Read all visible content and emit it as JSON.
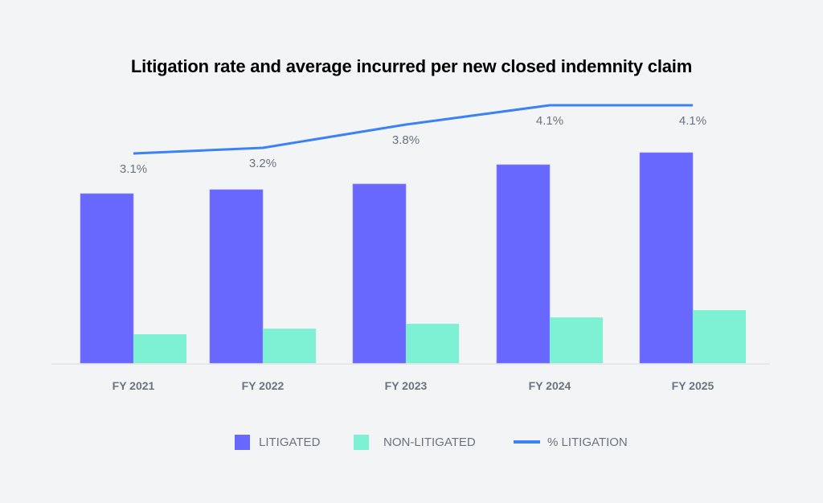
{
  "chart_data": {
    "type": "bar",
    "title": "Litigation rate and average incurred per new closed indemnity claim",
    "categories": [
      "FY 2021",
      "FY 2022",
      "FY 2023",
      "FY 2024",
      "FY 2025"
    ],
    "series": [
      {
        "name": "LITIGATED",
        "kind": "bar",
        "color": "#6868ff",
        "values": [
          211,
          216,
          223,
          247,
          262
        ]
      },
      {
        "name": "NON-LITIGATED",
        "kind": "bar",
        "color": "#7ef0d4",
        "values": [
          36,
          43,
          49,
          57,
          66
        ]
      },
      {
        "name": "% LITIGATION",
        "kind": "line",
        "color": "#3b82f6",
        "values": [
          3.1,
          3.2,
          3.8,
          4.1,
          4.1
        ],
        "labels": [
          "3.1%",
          "3.2%",
          "3.8%",
          "4.1%",
          "4.1%"
        ]
      }
    ],
    "bar_value_note": "relative units; no value axis shown",
    "xlabel": "",
    "ylabel": "",
    "grid": false,
    "legend_position": "bottom-center",
    "line_range": [
      2.0,
      4.1
    ]
  },
  "legend": {
    "items": [
      {
        "label": "LITIGATED",
        "color": "#6868ff"
      },
      {
        "label": "NON-LITIGATED",
        "color": "#7ef0d4"
      },
      {
        "label": "% LITIGATION",
        "color": "#3b82f6"
      }
    ]
  }
}
